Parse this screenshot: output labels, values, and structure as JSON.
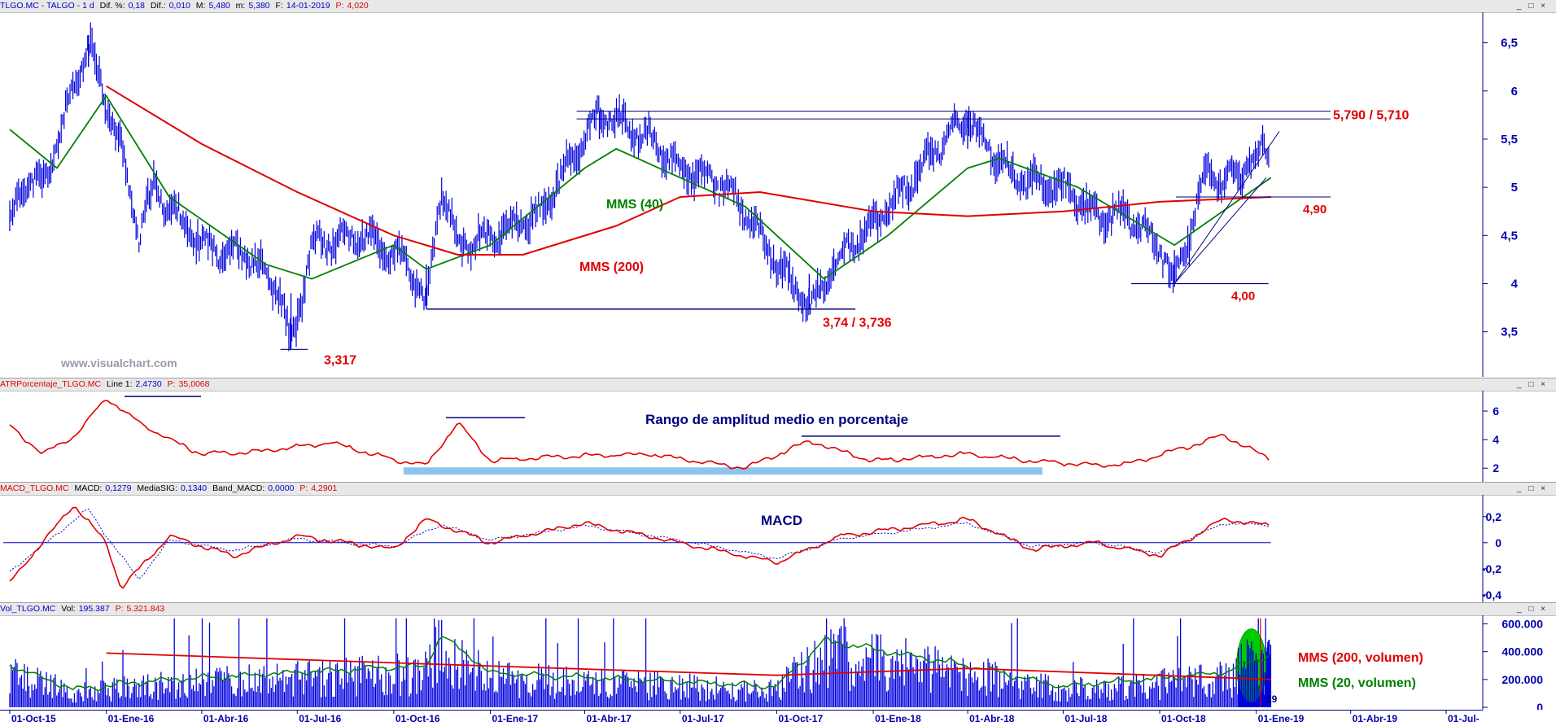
{
  "watermark": "www.visualchart.com",
  "price_header": {
    "name": "TLGO.MC - TALGO - 1 d",
    "dif_pct_label": "Dif. %:",
    "dif_pct": "0,18",
    "dif_label": "Dif.:",
    "dif": "0,010",
    "max_label": "M:",
    "max": "5,480",
    "min_label": "m:",
    "min": "5,380",
    "date_label": "F:",
    "date": "14-01-2019",
    "p_label": "P:",
    "p": "4,020"
  },
  "atr_header": {
    "name": "ATRPorcentaje_TLGO.MC",
    "line_label": "Line 1:",
    "line_value": "2,4730",
    "p_label": "P:",
    "p": "35,0068"
  },
  "macd_header": {
    "name": "MACD_TLGO.MC",
    "macd_label": "MACD:",
    "macd": "0,1279",
    "signal_label": "MediaSIG:",
    "signal": "0,1340",
    "band_label": "Band_MACD:",
    "band": "0,0000",
    "p_label": "P:",
    "p": "4,2901"
  },
  "vol_header": {
    "name": "Vol_TLGO.MC",
    "vol_label": "Vol:",
    "vol": "195.387",
    "p_label": "P:",
    "p": "5.321.843"
  },
  "window_buttons": "_ □ ×",
  "annotations": {
    "resistance": "5,790 / 5,710",
    "level_490": "4,90",
    "level_400": "4,00",
    "support": "3,74 / 3,736",
    "low": "3,317",
    "mms40": "MMS (40)",
    "mms200": "MMS (200)",
    "atr_title": "Rango de amplitud medio en porcentaje",
    "macd_title": "MACD",
    "vol_mms200": "MMS (200, volumen)",
    "vol_mms20": "MMS (20, volumen)",
    "partial_year": "19"
  },
  "colors": {
    "price": "#0000dd",
    "mms40": "#008000",
    "mms200": "#e00000",
    "atr": "#e00000",
    "macd": "#e00000",
    "signal": "#0000cc",
    "volume": "#0000dd",
    "highlight": "#00cc00",
    "band": "#8cc4ef",
    "trend": "#000080"
  },
  "chart_data": [
    {
      "type": "line",
      "title": "TLGO.MC - TALGO - 1 d",
      "x_ticks": [
        "01-Oct-15",
        "01-Ene-16",
        "01-Abr-16",
        "01-Jul-16",
        "01-Oct-16",
        "01-Ene-17",
        "01-Abr-17",
        "01-Jul-17",
        "01-Oct-17",
        "01-Ene-18",
        "01-Abr-18",
        "01-Jul-18",
        "01-Oct-18",
        "01-Ene-19",
        "01-Abr-19",
        "01-Jul-"
      ],
      "yticks": [
        "3,5",
        "4",
        "4,5",
        "5",
        "5,5",
        "6",
        "6,5"
      ],
      "ylim": [
        3.1,
        6.75
      ],
      "key_points": [
        [
          "01-Oct-15",
          4.6
        ],
        [
          "15-Oct-15",
          5.1
        ],
        [
          "01-Nov-15",
          5.0
        ],
        [
          "01-Dic-15",
          6.0
        ],
        [
          "15-Dic-15",
          6.5
        ],
        [
          "15-Ene-16",
          5.4
        ],
        [
          "01-Feb-16",
          4.5
        ],
        [
          "15-Feb-16",
          5.0
        ],
        [
          "01-Mar-16",
          4.8
        ],
        [
          "01-Abr-16",
          4.4
        ],
        [
          "15-May-16",
          4.3
        ],
        [
          "15-Jun-16",
          3.9
        ],
        [
          "25-Jun-16",
          3.317
        ],
        [
          "15-Jul-16",
          4.4
        ],
        [
          "01-Sep-16",
          4.5
        ],
        [
          "15-Oct-16",
          4.2
        ],
        [
          "01-Nov-16",
          3.74
        ],
        [
          "15-Nov-16",
          5.0
        ],
        [
          "01-Dic-16",
          4.4
        ],
        [
          "01-Ene-17",
          4.5
        ],
        [
          "15-Feb-17",
          4.7
        ],
        [
          "01-Abr-17",
          5.5
        ],
        [
          "15-Abr-17",
          5.79
        ],
        [
          "01-Jun-17",
          5.5
        ],
        [
          "01-Jul-17",
          5.2
        ],
        [
          "15-Ago-17",
          5.0
        ],
        [
          "15-Sep-17",
          4.5
        ],
        [
          "15-Oct-17",
          4.0
        ],
        [
          "01-Nov-17",
          3.736
        ],
        [
          "01-Dic-17",
          4.3
        ],
        [
          "01-Ene-18",
          4.6
        ],
        [
          "01-Feb-18",
          5.0
        ],
        [
          "01-Mar-18",
          5.4
        ],
        [
          "01-Abr-18",
          5.71
        ],
        [
          "15-Abr-18",
          5.5
        ],
        [
          "15-May-18",
          5.1
        ],
        [
          "01-Jul-18",
          5.0
        ],
        [
          "01-Ago-18",
          4.7
        ],
        [
          "01-Sep-18",
          4.7
        ],
        [
          "01-Oct-18",
          4.4
        ],
        [
          "15-Oct-18",
          4.0
        ],
        [
          "01-Nov-18",
          4.6
        ],
        [
          "15-Nov-18",
          5.2
        ],
        [
          "01-Dic-18",
          5.0
        ],
        [
          "14-Ene-19",
          5.45
        ]
      ],
      "series": [
        {
          "name": "MMS (40)",
          "points": [
            [
              "01-Oct-15",
              5.6
            ],
            [
              "15-Nov-15",
              5.2
            ],
            [
              "01-Ene-16",
              5.95
            ],
            [
              "01-Mar-16",
              4.9
            ],
            [
              "01-Jun-16",
              4.2
            ],
            [
              "15-Jul-16",
              4.05
            ],
            [
              "01-Oct-16",
              4.4
            ],
            [
              "01-Nov-16",
              4.15
            ],
            [
              "01-Ene-17",
              4.4
            ],
            [
              "01-Abr-17",
              5.2
            ],
            [
              "01-May-17",
              5.4
            ],
            [
              "01-Jul-17",
              5.1
            ],
            [
              "01-Sep-17",
              4.8
            ],
            [
              "15-Nov-17",
              4.05
            ],
            [
              "15-Ene-18",
              4.5
            ],
            [
              "01-Abr-18",
              5.2
            ],
            [
              "01-May-18",
              5.3
            ],
            [
              "15-Jul-18",
              5.0
            ],
            [
              "15-Oct-18",
              4.4
            ],
            [
              "15-Ene-19",
              5.1
            ]
          ]
        },
        {
          "name": "MMS (200)",
          "points": [
            [
              "01-Ene-16",
              6.05
            ],
            [
              "01-Abr-16",
              5.45
            ],
            [
              "01-Jul-16",
              4.95
            ],
            [
              "01-Oct-16",
              4.5
            ],
            [
              "01-Dic-16",
              4.3
            ],
            [
              "01-Feb-17",
              4.3
            ],
            [
              "01-May-17",
              4.6
            ],
            [
              "01-Jul-17",
              4.9
            ],
            [
              "15-Sep-17",
              4.95
            ],
            [
              "01-Ene-18",
              4.75
            ],
            [
              "01-Abr-18",
              4.7
            ],
            [
              "01-Jul-18",
              4.75
            ],
            [
              "01-Oct-18",
              4.85
            ],
            [
              "15-Ene-19",
              4.9
            ]
          ]
        }
      ]
    },
    {
      "type": "line",
      "title": "ATRPorcentaje_TLGO.MC",
      "yticks": [
        "2",
        "4",
        "6"
      ],
      "ylim": [
        1.5,
        7.2
      ],
      "series": [
        {
          "name": "Line 1",
          "points": [
            [
              "01-Oct-15",
              5.0
            ],
            [
              "01-Nov-15",
              3.0
            ],
            [
              "01-Dic-15",
              4.2
            ],
            [
              "01-Ene-16",
              6.9
            ],
            [
              "01-Feb-16",
              5.2
            ],
            [
              "01-Mar-16",
              4.0
            ],
            [
              "01-Abr-16",
              3.0
            ],
            [
              "01-Jun-16",
              3.2
            ],
            [
              "01-Ago-16",
              3.8
            ],
            [
              "01-Oct-16",
              2.6
            ],
            [
              "01-Nov-16",
              2.2
            ],
            [
              "01-Dic-16",
              5.2
            ],
            [
              "01-Ene-17",
              2.5
            ],
            [
              "01-Mar-17",
              2.8
            ],
            [
              "01-Jun-17",
              3.0
            ],
            [
              "01-Sep-17",
              2.0
            ],
            [
              "01-Nov-17",
              3.9
            ],
            [
              "01-Ene-18",
              2.5
            ],
            [
              "01-Abr-18",
              3.0
            ],
            [
              "01-Jun-18",
              2.5
            ],
            [
              "01-Ago-18",
              2.2
            ],
            [
              "01-Sep-18",
              2.3
            ],
            [
              "01-Nov-18",
              3.6
            ],
            [
              "01-Dic-18",
              4.3
            ],
            [
              "15-Ene-19",
              2.6
            ]
          ]
        }
      ]
    },
    {
      "type": "line",
      "title": "MACD_TLGO.MC",
      "yticks": [
        "-0,4",
        "-0,2",
        "0",
        "0,2"
      ],
      "ylim": [
        -0.42,
        0.33
      ],
      "series": [
        {
          "name": "MACD",
          "points": [
            [
              "01-Oct-15",
              -0.3
            ],
            [
              "01-Dic-15",
              0.29
            ],
            [
              "01-Ene-16",
              0.0
            ],
            [
              "15-Ene-16",
              -0.35
            ],
            [
              "01-Mar-16",
              0.05
            ],
            [
              "01-May-16",
              -0.1
            ],
            [
              "01-Jul-16",
              0.05
            ],
            [
              "01-Oct-16",
              -0.05
            ],
            [
              "01-Nov-16",
              0.18
            ],
            [
              "01-Ene-17",
              0.0
            ],
            [
              "01-Abr-17",
              0.15
            ],
            [
              "01-Jul-17",
              0.0
            ],
            [
              "01-Oct-17",
              -0.15
            ],
            [
              "01-Dic-17",
              0.05
            ],
            [
              "01-Abr-18",
              0.18
            ],
            [
              "01-Jun-18",
              -0.05
            ],
            [
              "01-Ago-18",
              0.0
            ],
            [
              "01-Oct-18",
              -0.1
            ],
            [
              "01-Dic-18",
              0.18
            ],
            [
              "15-Ene-19",
              0.13
            ]
          ]
        },
        {
          "name": "MediaSIG",
          "points": [
            [
              "01-Oct-15",
              -0.22
            ],
            [
              "15-Dic-15",
              0.26
            ],
            [
              "01-Ene-16",
              0.05
            ],
            [
              "01-Feb-16",
              -0.28
            ],
            [
              "01-Mar-16",
              0.02
            ],
            [
              "01-May-16",
              -0.06
            ],
            [
              "01-Jul-16",
              0.03
            ],
            [
              "01-Oct-16",
              -0.03
            ],
            [
              "15-Nov-16",
              0.14
            ],
            [
              "01-Ene-17",
              0.02
            ],
            [
              "01-Abr-17",
              0.13
            ],
            [
              "01-Jul-17",
              0.02
            ],
            [
              "01-Oct-17",
              -0.12
            ],
            [
              "01-Dic-17",
              0.03
            ],
            [
              "01-Abr-18",
              0.15
            ],
            [
              "01-Jun-18",
              -0.03
            ],
            [
              "01-Ago-18",
              0.0
            ],
            [
              "01-Oct-18",
              -0.08
            ],
            [
              "01-Dic-18",
              0.15
            ],
            [
              "15-Ene-19",
              0.134
            ]
          ]
        }
      ]
    },
    {
      "type": "bar",
      "title": "Vol_TLGO.MC",
      "yticks": [
        "0",
        "200.000",
        "400.000",
        "600.000"
      ],
      "ylim": [
        0,
        650000
      ],
      "series": [
        {
          "name": "MMS (200, volumen)",
          "points": [
            [
              "01-Ene-16",
              390000
            ],
            [
              "01-Oct-16",
              320000
            ],
            [
              "01-Oct-17",
              230000
            ],
            [
              "01-Abr-18",
              280000
            ],
            [
              "15-Ene-19",
              200000
            ]
          ]
        },
        {
          "name": "MMS (20, volumen)",
          "points": [
            [
              "01-Oct-15",
              300000
            ],
            [
              "01-Dic-15",
              130000
            ],
            [
              "01-Mar-16",
              200000
            ],
            [
              "01-Nov-16",
              300000
            ],
            [
              "15-Nov-16",
              520000
            ],
            [
              "01-Ene-17",
              250000
            ],
            [
              "01-Oct-17",
              150000
            ],
            [
              "15-Nov-17",
              480000
            ],
            [
              "01-Abr-18",
              300000
            ],
            [
              "01-Jul-18",
              150000
            ],
            [
              "01-Dic-18",
              250000
            ],
            [
              "15-Ene-19",
              380000
            ]
          ]
        }
      ]
    }
  ]
}
